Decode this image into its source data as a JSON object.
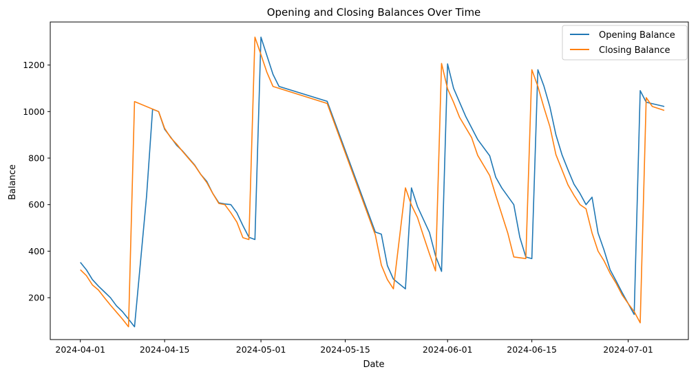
{
  "chart_data": {
    "type": "line",
    "title": "Opening and Closing Balances Over Time",
    "xlabel": "Date",
    "ylabel": "Balance",
    "x_ticks": [
      "2024-04-01",
      "2024-04-15",
      "2024-05-01",
      "2024-05-15",
      "2024-06-01",
      "2024-06-15",
      "2024-07-01"
    ],
    "y_ticks": [
      200,
      400,
      600,
      800,
      1000,
      1200
    ],
    "xlim": [
      "2024-03-27",
      "2024-07-11"
    ],
    "ylim": [
      20,
      1385
    ],
    "grid": false,
    "legend_position": "top-right",
    "series": [
      {
        "name": "Opening Balance",
        "color": "#1f77b4",
        "points": [
          [
            "2024-04-01",
            352
          ],
          [
            "2024-04-02",
            320
          ],
          [
            "2024-04-03",
            278
          ],
          [
            "2024-04-04",
            250
          ],
          [
            "2024-04-05",
            225
          ],
          [
            "2024-04-06",
            200
          ],
          [
            "2024-04-07",
            165
          ],
          [
            "2024-04-08",
            140
          ],
          [
            "2024-04-09",
            108
          ],
          [
            "2024-04-10",
            75
          ],
          [
            "2024-04-12",
            636
          ],
          [
            "2024-04-13",
            1010
          ],
          [
            "2024-04-14",
            1000
          ],
          [
            "2024-04-15",
            924
          ],
          [
            "2024-04-16",
            890
          ],
          [
            "2024-04-17",
            855
          ],
          [
            "2024-04-18",
            830
          ],
          [
            "2024-04-19",
            800
          ],
          [
            "2024-04-20",
            770
          ],
          [
            "2024-04-21",
            730
          ],
          [
            "2024-04-22",
            700
          ],
          [
            "2024-04-23",
            648
          ],
          [
            "2024-04-24",
            608
          ],
          [
            "2024-04-25",
            603
          ],
          [
            "2024-04-26",
            600
          ],
          [
            "2024-04-27",
            565
          ],
          [
            "2024-04-28",
            510
          ],
          [
            "2024-04-29",
            460
          ],
          [
            "2024-04-30",
            450
          ],
          [
            "2024-05-01",
            1320
          ],
          [
            "2024-05-02",
            1240
          ],
          [
            "2024-05-03",
            1160
          ],
          [
            "2024-05-04",
            1108
          ],
          [
            "2024-05-12",
            1044
          ],
          [
            "2024-05-20",
            482
          ],
          [
            "2024-05-21",
            473
          ],
          [
            "2024-05-22",
            338
          ],
          [
            "2024-05-23",
            280
          ],
          [
            "2024-05-25",
            238
          ],
          [
            "2024-05-26",
            672
          ],
          [
            "2024-05-27",
            592
          ],
          [
            "2024-05-29",
            480
          ],
          [
            "2024-05-30",
            380
          ],
          [
            "2024-05-31",
            313
          ],
          [
            "2024-06-01",
            1205
          ],
          [
            "2024-06-02",
            1100
          ],
          [
            "2024-06-03",
            1040
          ],
          [
            "2024-06-04",
            980
          ],
          [
            "2024-06-05",
            930
          ],
          [
            "2024-06-06",
            880
          ],
          [
            "2024-06-08",
            810
          ],
          [
            "2024-06-09",
            718
          ],
          [
            "2024-06-10",
            672
          ],
          [
            "2024-06-12",
            600
          ],
          [
            "2024-06-13",
            460
          ],
          [
            "2024-06-14",
            375
          ],
          [
            "2024-06-15",
            368
          ],
          [
            "2024-06-16",
            1180
          ],
          [
            "2024-06-17",
            1110
          ],
          [
            "2024-06-18",
            1020
          ],
          [
            "2024-06-19",
            900
          ],
          [
            "2024-06-20",
            815
          ],
          [
            "2024-06-21",
            750
          ],
          [
            "2024-06-22",
            688
          ],
          [
            "2024-06-23",
            648
          ],
          [
            "2024-06-24",
            600
          ],
          [
            "2024-06-25",
            632
          ],
          [
            "2024-06-26",
            478
          ],
          [
            "2024-06-27",
            404
          ],
          [
            "2024-06-28",
            320
          ],
          [
            "2024-06-29",
            272
          ],
          [
            "2024-06-30",
            222
          ],
          [
            "2024-07-01",
            175
          ],
          [
            "2024-07-02",
            128
          ],
          [
            "2024-07-03",
            1090
          ],
          [
            "2024-07-04",
            1040
          ],
          [
            "2024-07-07",
            1022
          ]
        ]
      },
      {
        "name": "Closing Balance",
        "color": "#ff7f0e",
        "points": [
          [
            "2024-04-01",
            320
          ],
          [
            "2024-04-02",
            295
          ],
          [
            "2024-04-03",
            255
          ],
          [
            "2024-04-04",
            233
          ],
          [
            "2024-04-05",
            200
          ],
          [
            "2024-04-06",
            168
          ],
          [
            "2024-04-07",
            138
          ],
          [
            "2024-04-08",
            108
          ],
          [
            "2024-04-09",
            75
          ],
          [
            "2024-04-10",
            1043
          ],
          [
            "2024-04-14",
            1000
          ],
          [
            "2024-04-15",
            928
          ],
          [
            "2024-04-16",
            888
          ],
          [
            "2024-04-17",
            860
          ],
          [
            "2024-04-18",
            828
          ],
          [
            "2024-04-19",
            798
          ],
          [
            "2024-04-20",
            768
          ],
          [
            "2024-04-21",
            730
          ],
          [
            "2024-04-22",
            695
          ],
          [
            "2024-04-23",
            648
          ],
          [
            "2024-04-24",
            605
          ],
          [
            "2024-04-25",
            600
          ],
          [
            "2024-04-26",
            565
          ],
          [
            "2024-04-27",
            525
          ],
          [
            "2024-04-28",
            458
          ],
          [
            "2024-04-29",
            450
          ],
          [
            "2024-04-30",
            1320
          ],
          [
            "2024-05-01",
            1245
          ],
          [
            "2024-05-02",
            1168
          ],
          [
            "2024-05-03",
            1108
          ],
          [
            "2024-05-04",
            1100
          ],
          [
            "2024-05-12",
            1035
          ],
          [
            "2024-05-20",
            470
          ],
          [
            "2024-05-21",
            340
          ],
          [
            "2024-05-22",
            278
          ],
          [
            "2024-05-23",
            238
          ],
          [
            "2024-05-25",
            672
          ],
          [
            "2024-05-26",
            598
          ],
          [
            "2024-05-27",
            545
          ],
          [
            "2024-05-28",
            465
          ],
          [
            "2024-05-29",
            388
          ],
          [
            "2024-05-30",
            315
          ],
          [
            "2024-05-31",
            1207
          ],
          [
            "2024-06-01",
            1098
          ],
          [
            "2024-06-02",
            1040
          ],
          [
            "2024-06-03",
            975
          ],
          [
            "2024-06-05",
            888
          ],
          [
            "2024-06-06",
            812
          ],
          [
            "2024-06-08",
            725
          ],
          [
            "2024-06-09",
            640
          ],
          [
            "2024-06-11",
            478
          ],
          [
            "2024-06-12",
            375
          ],
          [
            "2024-06-14",
            368
          ],
          [
            "2024-06-15",
            1180
          ],
          [
            "2024-06-16",
            1108
          ],
          [
            "2024-06-17",
            1018
          ],
          [
            "2024-06-18",
            935
          ],
          [
            "2024-06-19",
            815
          ],
          [
            "2024-06-20",
            750
          ],
          [
            "2024-06-21",
            685
          ],
          [
            "2024-06-22",
            640
          ],
          [
            "2024-06-23",
            600
          ],
          [
            "2024-06-24",
            582
          ],
          [
            "2024-06-25",
            478
          ],
          [
            "2024-06-26",
            400
          ],
          [
            "2024-06-27",
            358
          ],
          [
            "2024-06-28",
            305
          ],
          [
            "2024-06-29",
            262
          ],
          [
            "2024-06-30",
            212
          ],
          [
            "2024-07-01",
            175
          ],
          [
            "2024-07-02",
            140
          ],
          [
            "2024-07-03",
            92
          ],
          [
            "2024-07-04",
            1060
          ],
          [
            "2024-07-05",
            1022
          ],
          [
            "2024-07-07",
            1005
          ]
        ]
      }
    ]
  }
}
